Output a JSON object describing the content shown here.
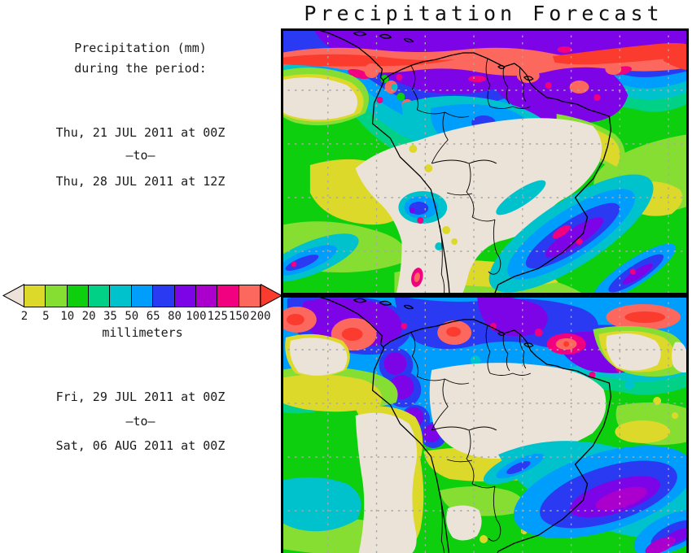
{
  "title": "Precipitation Forecast",
  "sidebar": {
    "heading_line1": "Precipitation (mm)",
    "heading_line2": "during the period:",
    "period1": {
      "start": "Thu, 21 JUL 2011 at 00Z",
      "separator": "–to–",
      "end": "Thu, 28 JUL 2011 at 12Z"
    },
    "period2": {
      "start": "Fri, 29 JUL 2011 at 00Z",
      "separator": "–to–",
      "end": "Sat, 06 AUG 2011 at 00Z"
    }
  },
  "colorbar": {
    "unit_label": "millimeters",
    "ticks": [
      "2",
      "5",
      "10",
      "20",
      "35",
      "50",
      "65",
      "80",
      "100",
      "125",
      "150",
      "200"
    ],
    "underflow_color": "#ece2da",
    "overflow_color": "#fb3b2d",
    "swatch_colors": [
      "#ddd92b",
      "#86de33",
      "#0dcf0d",
      "#00d186",
      "#00c2cd",
      "#009efc",
      "#2a3af2",
      "#7d04e6",
      "#ab00cd",
      "#f1007f",
      "#fc685e"
    ]
  },
  "palette": {
    "dry": "#ece3d8",
    "mm2": "#ddd92b",
    "mm5": "#86de33",
    "mm10": "#0dcf0d",
    "mm20": "#00d186",
    "mm35": "#00c2cd",
    "mm50": "#009efc",
    "mm65": "#2a3af2",
    "mm80": "#7d04e6",
    "mm100": "#ab00cd",
    "mm125": "#f1007f",
    "mm150": "#fc685e",
    "over": "#fb3b2d"
  }
}
